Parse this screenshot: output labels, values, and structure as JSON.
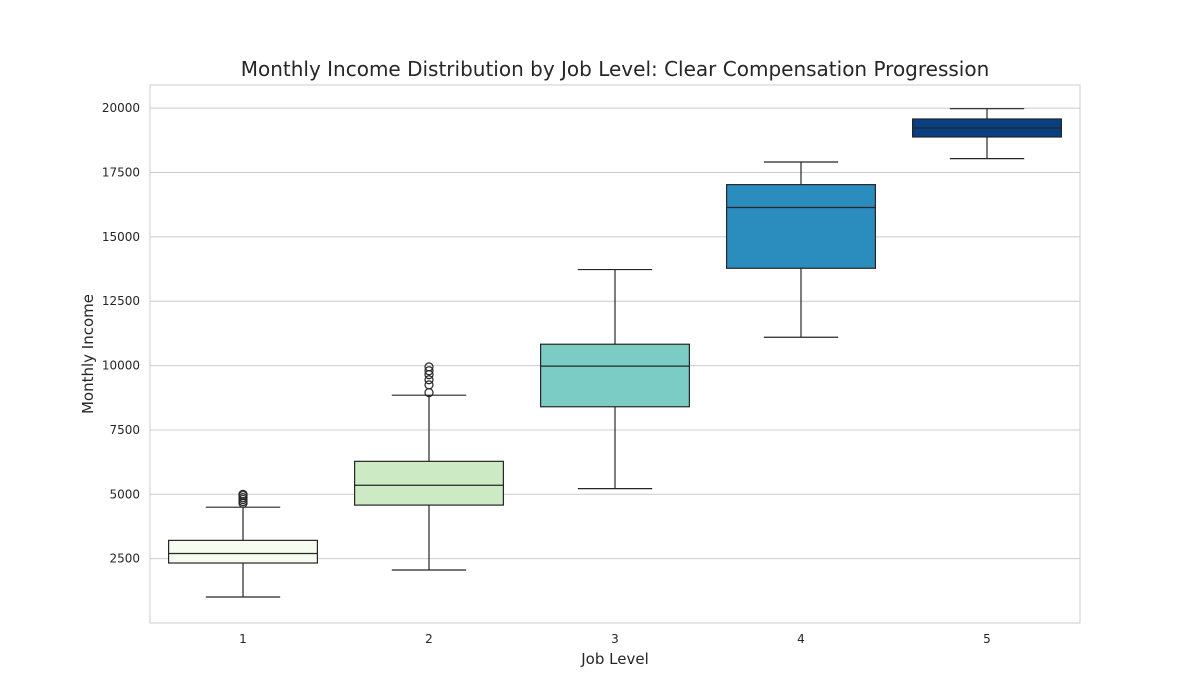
{
  "chart_data": {
    "type": "box",
    "title": "Monthly Income Distribution by Job Level: Clear Compensation Progression",
    "xlabel": "Job Level",
    "ylabel": "Monthly Income",
    "ylim": [
      0,
      20900
    ],
    "yticks": [
      2500,
      5000,
      7500,
      10000,
      12500,
      15000,
      17500,
      20000
    ],
    "grid": "horizontal",
    "categories": [
      "1",
      "2",
      "3",
      "4",
      "5"
    ],
    "boxes": [
      {
        "category": "1",
        "whisker_low": 1009,
        "q1": 2330,
        "median": 2700,
        "q3": 3210,
        "whisker_high": 4500,
        "outliers": [
          4650,
          4720,
          4800,
          4870,
          4950,
          5000
        ],
        "color": "#f7fcf0"
      },
      {
        "category": "2",
        "whisker_low": 2060,
        "q1": 4580,
        "median": 5350,
        "q3": 6280,
        "whisker_high": 8850,
        "outliers": [
          8950,
          9250,
          9450,
          9650,
          9800,
          9950
        ],
        "color": "#ccebc5"
      },
      {
        "category": "3",
        "whisker_low": 5220,
        "q1": 8400,
        "median": 9980,
        "q3": 10830,
        "whisker_high": 13730,
        "outliers": [],
        "color": "#7bccc4"
      },
      {
        "category": "4",
        "whisker_low": 11100,
        "q1": 13780,
        "median": 16140,
        "q3": 17030,
        "whisker_high": 17910,
        "outliers": [],
        "color": "#2b8cbe"
      },
      {
        "category": "5",
        "whisker_low": 18040,
        "q1": 18880,
        "median": 19230,
        "q3": 19580,
        "whisker_high": 19980,
        "outliers": [],
        "color": "#084081"
      }
    ]
  }
}
